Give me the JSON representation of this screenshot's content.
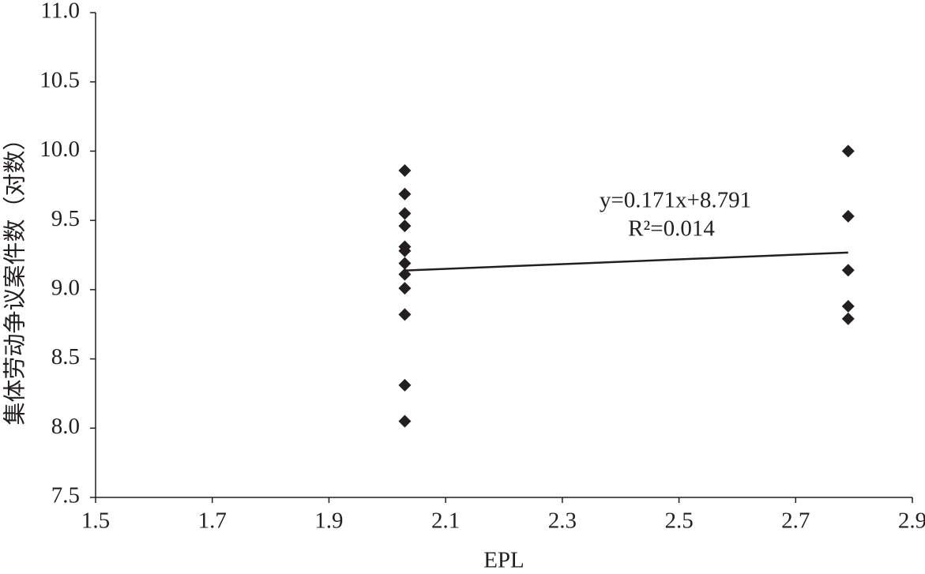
{
  "chart_data": {
    "type": "scatter",
    "x_label": "EPL",
    "y_label": "集体劳动争议案件数（对数）",
    "x": [
      2.03,
      2.03,
      2.03,
      2.03,
      2.03,
      2.03,
      2.03,
      2.03,
      2.03,
      2.03,
      2.03,
      2.03,
      2.79,
      2.79,
      2.79,
      2.79,
      2.79
    ],
    "values": [
      9.86,
      9.69,
      9.55,
      9.46,
      9.31,
      9.28,
      9.19,
      9.11,
      9.01,
      8.82,
      8.31,
      8.05,
      10.0,
      9.53,
      9.14,
      8.88,
      8.79
    ],
    "color": "#231f20",
    "xlim": [
      1.5,
      2.9
    ],
    "xticks": [
      1.5,
      1.7,
      1.9,
      2.1,
      2.3,
      2.5,
      2.7,
      2.9
    ],
    "ylim": [
      7.5,
      11
    ],
    "yticks": [
      7.5,
      {
        "value": 8,
        "label": "8.0"
      },
      8.5,
      {
        "value": 9,
        "label": "9.0"
      },
      9.5,
      {
        "value": 10,
        "label": "10.0"
      },
      10.5,
      {
        "value": 11,
        "label": "11.0"
      }
    ],
    "trendline": {
      "slope": 0.171,
      "intercept": 8.791,
      "label": "y=0.171x+8.791",
      "r2_label": "R²=0.014"
    }
  }
}
